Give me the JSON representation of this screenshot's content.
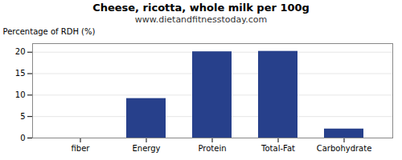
{
  "chart_data": {
    "type": "bar",
    "title": "Cheese, ricotta, whole milk per 100g",
    "subtitle": "www.dietandfitnesstoday.com",
    "categories": [
      "fiber",
      "Energy",
      "Protein",
      "Total-Fat",
      "Carbohydrate"
    ],
    "values": [
      0,
      9.2,
      20.1,
      20.2,
      2.1
    ],
    "color": "#27408B",
    "ylabel": "Percentage of RDH (%)",
    "ylim": [
      0,
      22
    ],
    "yticks": [
      0,
      5,
      10,
      15,
      20
    ],
    "grid": true
  }
}
